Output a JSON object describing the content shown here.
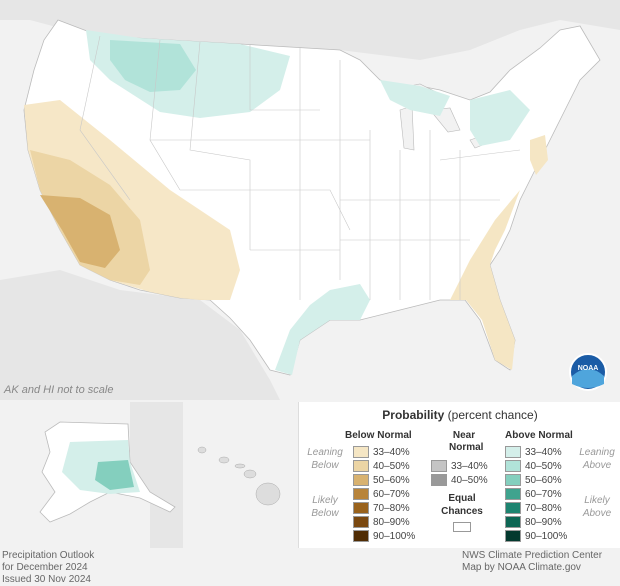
{
  "map_note": "AK and HI not to scale",
  "legend": {
    "title_bold": "Probability",
    "title_rest": " (percent chance)",
    "below_header": "Below Normal",
    "near_header_1": "Near",
    "near_header_2": "Normal",
    "above_header": "Above Normal",
    "leaning_below_1": "Leaning",
    "leaning_below_2": "Below",
    "likely_below_1": "Likely",
    "likely_below_2": "Below",
    "leaning_above_1": "Leaning",
    "leaning_above_2": "Above",
    "likely_above_1": "Likely",
    "likely_above_2": "Above",
    "equal_1": "Equal",
    "equal_2": "Chances",
    "below_rows": [
      {
        "label": "33–40%",
        "color": "#f5e6c4"
      },
      {
        "label": "40–50%",
        "color": "#ecd5a5"
      },
      {
        "label": "50–60%",
        "color": "#d8b270"
      },
      {
        "label": "60–70%",
        "color": "#b8843a"
      },
      {
        "label": "70–80%",
        "color": "#99621c"
      },
      {
        "label": "80–90%",
        "color": "#7a4810"
      },
      {
        "label": "90–100%",
        "color": "#4f2c04"
      }
    ],
    "near_rows": [
      {
        "label": "33–40%",
        "color": "#c4c4c4"
      },
      {
        "label": "40–50%",
        "color": "#999999"
      }
    ],
    "above_rows": [
      {
        "label": "33–40%",
        "color": "#d4efea"
      },
      {
        "label": "40–50%",
        "color": "#b1e3d9"
      },
      {
        "label": "50–60%",
        "color": "#84cfbe"
      },
      {
        "label": "60–70%",
        "color": "#3fa38e"
      },
      {
        "label": "70–80%",
        "color": "#1d8470"
      },
      {
        "label": "80–90%",
        "color": "#0d6654"
      },
      {
        "label": "90–100%",
        "color": "#03392e"
      }
    ]
  },
  "footer_left": [
    "Precipitation Outlook",
    "for December 2024",
    "Issued 30 Nov 2024"
  ],
  "footer_right": [
    "NWS Climate Prediction Center",
    "Map by NOAA Climate.gov"
  ],
  "logo_text": "NOAA"
}
